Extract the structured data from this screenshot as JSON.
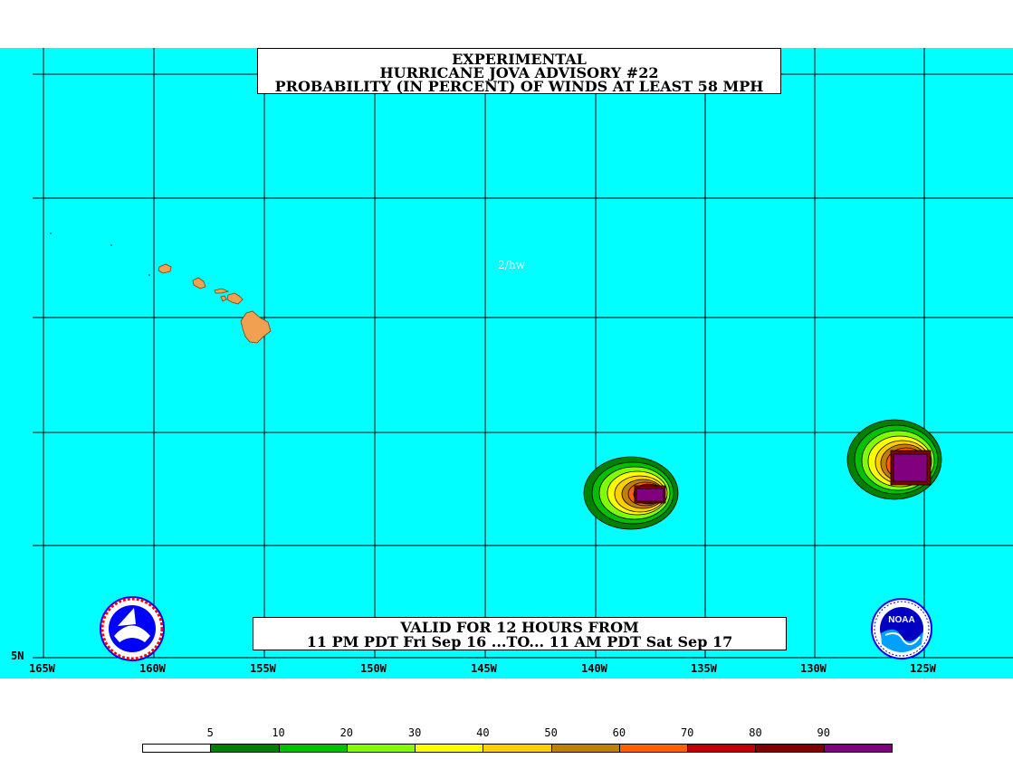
{
  "title": {
    "line1": "EXPERIMENTAL",
    "line2": "HURRICANE JOVA ADVISORY #22",
    "line3": "PROBABILITY (IN PERCENT) OF WINDS AT LEAST 58 MPH"
  },
  "valid": {
    "line1": "VALID FOR 12 HOURS FROM",
    "line2": "11 PM PDT Fri Sep 16 ...TO... 11 AM PDT Sat Sep 17"
  },
  "credit": "2/hw",
  "axis": {
    "lon_labels": [
      "165W",
      "160W",
      "155W",
      "150W",
      "145W",
      "140W",
      "135W",
      "130W",
      "125W"
    ],
    "lat_labels": [
      "5N"
    ]
  },
  "legend": {
    "labels": [
      "5",
      "10",
      "20",
      "30",
      "40",
      "50",
      "60",
      "70",
      "80",
      "90"
    ],
    "colors": [
      "#ffffff",
      "#008000",
      "#00c000",
      "#80ff00",
      "#ffff00",
      "#ffd000",
      "#c08000",
      "#ff6000",
      "#c00000",
      "#800000",
      "#800080"
    ]
  },
  "map_colors": {
    "ocean": "#00ffff",
    "land": "#f0a050",
    "grid": "#000000"
  },
  "logos": {
    "left": "nws-logo",
    "right": "noaa-logo"
  }
}
